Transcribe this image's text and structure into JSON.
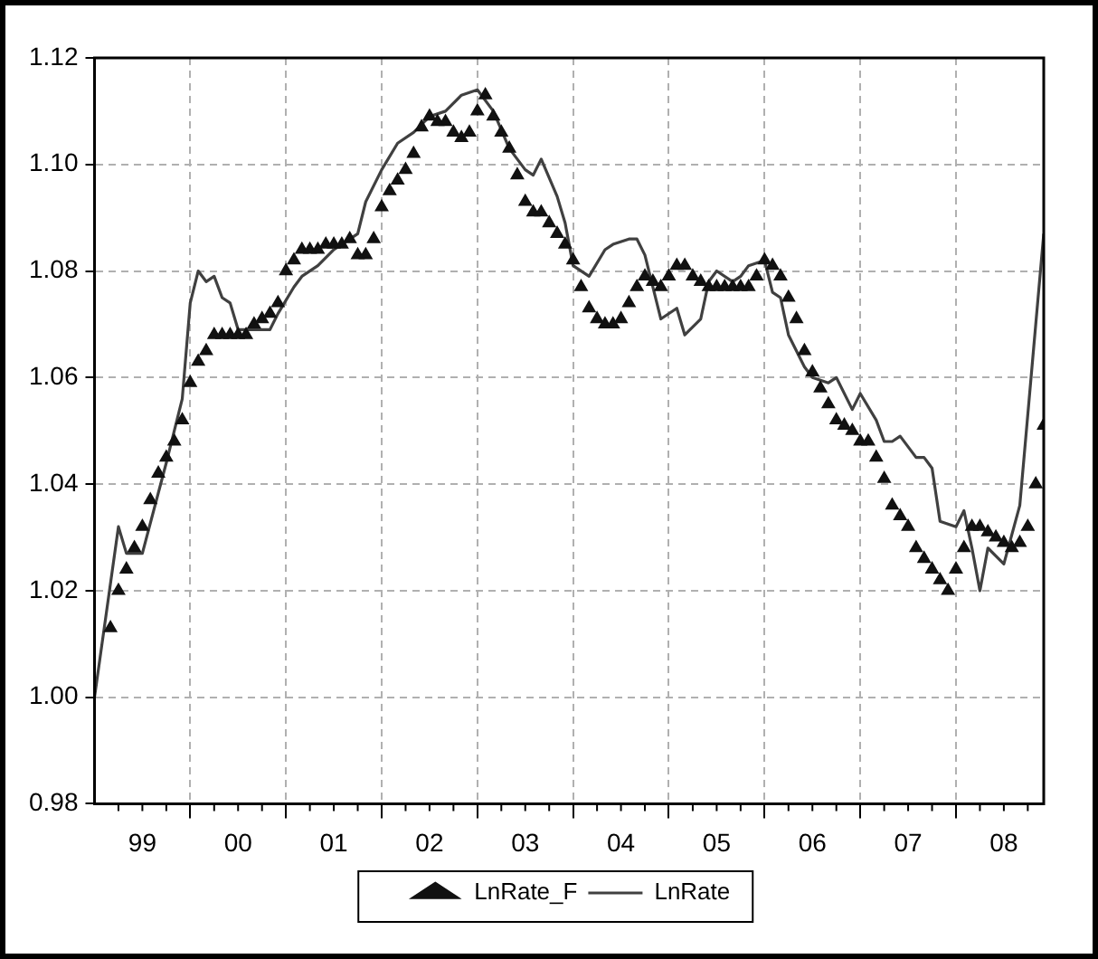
{
  "chart_data": {
    "type": "line",
    "xlim": [
      "1999-01",
      "2008-12"
    ],
    "xticks": [
      {
        "value": "1999-07",
        "label": "99"
      },
      {
        "value": "2000-01",
        "label": null
      },
      {
        "value": "2000-07",
        "label": "00"
      },
      {
        "value": "2001-01",
        "label": null
      },
      {
        "value": "2001-07",
        "label": "01"
      },
      {
        "value": "2002-01",
        "label": null
      },
      {
        "value": "2002-07",
        "label": "02"
      },
      {
        "value": "2003-01",
        "label": null
      },
      {
        "value": "2003-07",
        "label": "03"
      },
      {
        "value": "2004-01",
        "label": null
      },
      {
        "value": "2004-07",
        "label": "04"
      },
      {
        "value": "2005-01",
        "label": null
      },
      {
        "value": "2005-07",
        "label": "05"
      },
      {
        "value": "2006-01",
        "label": null
      },
      {
        "value": "2006-07",
        "label": "06"
      },
      {
        "value": "2007-01",
        "label": null
      },
      {
        "value": "2007-07",
        "label": "07"
      },
      {
        "value": "2008-01",
        "label": null
      },
      {
        "value": "2008-07",
        "label": "08"
      }
    ],
    "ylim": [
      0.98,
      1.12
    ],
    "yticks": [
      0.98,
      {
        "value": 1,
        "label": "1.00"
      },
      1.02,
      1.04,
      1.06,
      1.08,
      {
        "value": 1.1,
        "label": "1.10"
      },
      1.12
    ],
    "grid": true,
    "legend": "bottom",
    "series": [
      {
        "name": "LnRate_F",
        "type": "scatter",
        "marker": "triangle",
        "color": "#111111",
        "x": [
          "1999-03",
          "1999-04",
          "1999-05",
          "1999-06",
          "1999-07",
          "1999-08",
          "1999-09",
          "1999-10",
          "1999-11",
          "1999-12",
          "2000-01",
          "2000-02",
          "2000-03",
          "2000-04",
          "2000-05",
          "2000-06",
          "2000-07",
          "2000-08",
          "2000-09",
          "2000-10",
          "2000-11",
          "2000-12",
          "2001-01",
          "2001-02",
          "2001-03",
          "2001-04",
          "2001-05",
          "2001-06",
          "2001-07",
          "2001-08",
          "2001-09",
          "2001-10",
          "2001-11",
          "2001-12",
          "2002-01",
          "2002-02",
          "2002-03",
          "2002-04",
          "2002-05",
          "2002-06",
          "2002-07",
          "2002-08",
          "2002-09",
          "2002-10",
          "2002-11",
          "2002-12",
          "2003-01",
          "2003-02",
          "2003-03",
          "2003-04",
          "2003-05",
          "2003-06",
          "2003-07",
          "2003-08",
          "2003-09",
          "2003-10",
          "2003-11",
          "2003-12",
          "2004-01",
          "2004-02",
          "2004-03",
          "2004-04",
          "2004-05",
          "2004-06",
          "2004-07",
          "2004-08",
          "2004-09",
          "2004-10",
          "2004-11",
          "2004-12",
          "2005-01",
          "2005-02",
          "2005-03",
          "2005-04",
          "2005-05",
          "2005-06",
          "2005-07",
          "2005-08",
          "2005-09",
          "2005-10",
          "2005-11",
          "2005-12",
          "2006-01",
          "2006-02",
          "2006-03",
          "2006-04",
          "2006-05",
          "2006-06",
          "2006-07",
          "2006-08",
          "2006-09",
          "2006-10",
          "2006-11",
          "2006-12",
          "2007-01",
          "2007-02",
          "2007-03",
          "2007-04",
          "2007-05",
          "2007-06",
          "2007-07",
          "2007-08",
          "2007-09",
          "2007-10",
          "2007-11",
          "2007-12",
          "2008-01",
          "2008-02",
          "2008-03",
          "2008-04",
          "2008-05",
          "2008-06",
          "2008-07",
          "2008-08",
          "2008-09",
          "2008-10",
          "2008-11",
          "2008-12"
        ],
        "values": [
          1.013,
          1.02,
          1.024,
          1.028,
          1.032,
          1.037,
          1.042,
          1.045,
          1.048,
          1.052,
          1.059,
          1.063,
          1.065,
          1.068,
          1.068,
          1.068,
          1.068,
          1.068,
          1.07,
          1.071,
          1.072,
          1.074,
          1.08,
          1.082,
          1.084,
          1.084,
          1.084,
          1.085,
          1.085,
          1.085,
          1.086,
          1.083,
          1.083,
          1.086,
          1.092,
          1.095,
          1.097,
          1.099,
          1.102,
          1.107,
          1.109,
          1.108,
          1.108,
          1.106,
          1.105,
          1.106,
          1.11,
          1.113,
          1.109,
          1.106,
          1.103,
          1.098,
          1.093,
          1.091,
          1.091,
          1.089,
          1.087,
          1.085,
          1.082,
          1.077,
          1.073,
          1.071,
          1.07,
          1.07,
          1.071,
          1.074,
          1.077,
          1.079,
          1.078,
          1.077,
          1.079,
          1.081,
          1.081,
          1.079,
          1.078,
          1.077,
          1.077,
          1.077,
          1.077,
          1.077,
          1.077,
          1.079,
          1.082,
          1.081,
          1.079,
          1.075,
          1.071,
          1.065,
          1.061,
          1.058,
          1.055,
          1.052,
          1.051,
          1.05,
          1.048,
          1.048,
          1.045,
          1.041,
          1.036,
          1.034,
          1.032,
          1.028,
          1.026,
          1.024,
          1.022,
          1.02,
          1.024,
          1.028,
          1.032,
          1.032,
          1.031,
          1.03,
          1.029,
          1.028,
          1.029,
          1.032,
          1.04,
          1.051
        ]
      },
      {
        "name": "LnRate",
        "type": "line",
        "marker": "none",
        "line_style": "solid",
        "color": "#404040",
        "x": [
          "1999-01",
          "1999-04",
          "1999-05",
          "1999-07",
          "1999-10",
          "1999-12",
          "2000-01",
          "2000-02",
          "2000-03",
          "2000-04",
          "2000-05",
          "2000-06",
          "2000-07",
          "2000-11",
          "2000-12",
          "2001-02",
          "2001-03",
          "2001-05",
          "2001-07",
          "2001-10",
          "2001-11",
          "2002-01",
          "2002-03",
          "2002-05",
          "2002-07",
          "2002-09",
          "2002-11",
          "2003-01",
          "2003-03",
          "2003-05",
          "2003-07",
          "2003-08",
          "2003-09",
          "2003-11",
          "2003-12",
          "2004-01",
          "2004-03",
          "2004-05",
          "2004-06",
          "2004-08",
          "2004-09",
          "2004-10",
          "2004-12",
          "2005-02",
          "2005-03",
          "2005-05",
          "2005-06",
          "2005-07",
          "2005-09",
          "2005-10",
          "2005-11",
          "2006-01",
          "2006-02",
          "2006-03",
          "2006-04",
          "2006-06",
          "2006-07",
          "2006-09",
          "2006-10",
          "2006-12",
          "2007-01",
          "2007-03",
          "2007-04",
          "2007-05",
          "2007-06",
          "2007-08",
          "2007-09",
          "2007-10",
          "2007-11",
          "2008-01",
          "2008-02",
          "2008-03",
          "2008-04",
          "2008-05",
          "2008-07",
          "2008-09",
          "2008-11",
          "2008-12"
        ],
        "values": [
          1.0,
          1.032,
          1.027,
          1.027,
          1.044,
          1.056,
          1.074,
          1.08,
          1.078,
          1.079,
          1.075,
          1.074,
          1.069,
          1.069,
          1.072,
          1.077,
          1.079,
          1.081,
          1.084,
          1.087,
          1.093,
          1.099,
          1.104,
          1.106,
          1.109,
          1.11,
          1.113,
          1.114,
          1.11,
          1.103,
          1.099,
          1.098,
          1.101,
          1.094,
          1.089,
          1.081,
          1.079,
          1.084,
          1.085,
          1.086,
          1.086,
          1.083,
          1.071,
          1.073,
          1.068,
          1.071,
          1.078,
          1.08,
          1.078,
          1.079,
          1.081,
          1.082,
          1.076,
          1.075,
          1.068,
          1.062,
          1.06,
          1.059,
          1.06,
          1.054,
          1.057,
          1.052,
          1.048,
          1.048,
          1.049,
          1.045,
          1.045,
          1.043,
          1.033,
          1.032,
          1.035,
          1.028,
          1.02,
          1.028,
          1.025,
          1.036,
          1.07,
          1.087
        ]
      }
    ]
  }
}
